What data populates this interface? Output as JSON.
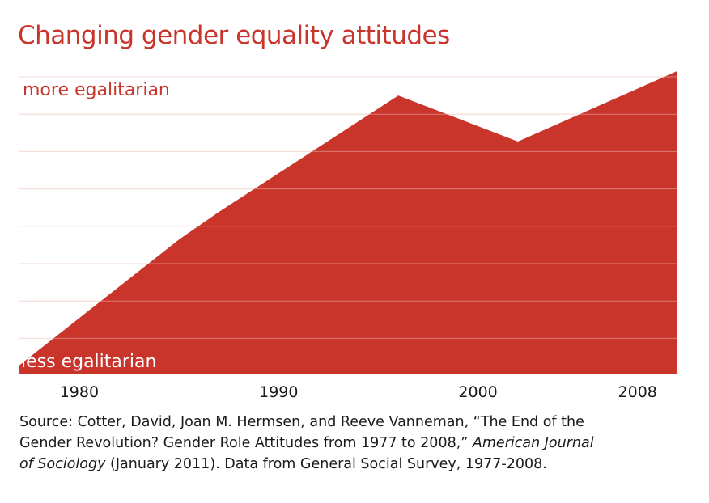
{
  "chart_data": {
    "type": "area",
    "title": "Changing gender equality attitudes",
    "y_top_label": "more egalitarian",
    "y_bottom_label": "less egalitarian",
    "x": [
      1977,
      1985,
      1987,
      1996,
      2002,
      2010
    ],
    "values": [
      0.03,
      0.44,
      0.53,
      0.91,
      0.76,
      0.99
    ],
    "xlim": [
      1977,
      2010
    ],
    "ylim": [
      0,
      1
    ],
    "x_ticks": [
      {
        "value": 1980,
        "label": "1980"
      },
      {
        "value": 1990,
        "label": "1990"
      },
      {
        "value": 2000,
        "label": "2000"
      },
      {
        "value": 2008,
        "label": "2008"
      }
    ],
    "gridlines": 8,
    "grid": true,
    "colors": {
      "fill": "#c9352b",
      "grid": "#f2c7bd",
      "title": "#c9352b"
    }
  },
  "source": {
    "line1": "Source: Cotter, David, Joan M. Hermsen, and Reeve Vanneman, “The End of the",
    "line2_plain": "Gender Revolution? Gender Role Attitudes from 1977 to 2008,” ",
    "line2_italic": "American Journal",
    "line3_italic": "of Sociology",
    "line3_plain": " (January 2011). Data from General Social Survey, 1977-2008."
  }
}
